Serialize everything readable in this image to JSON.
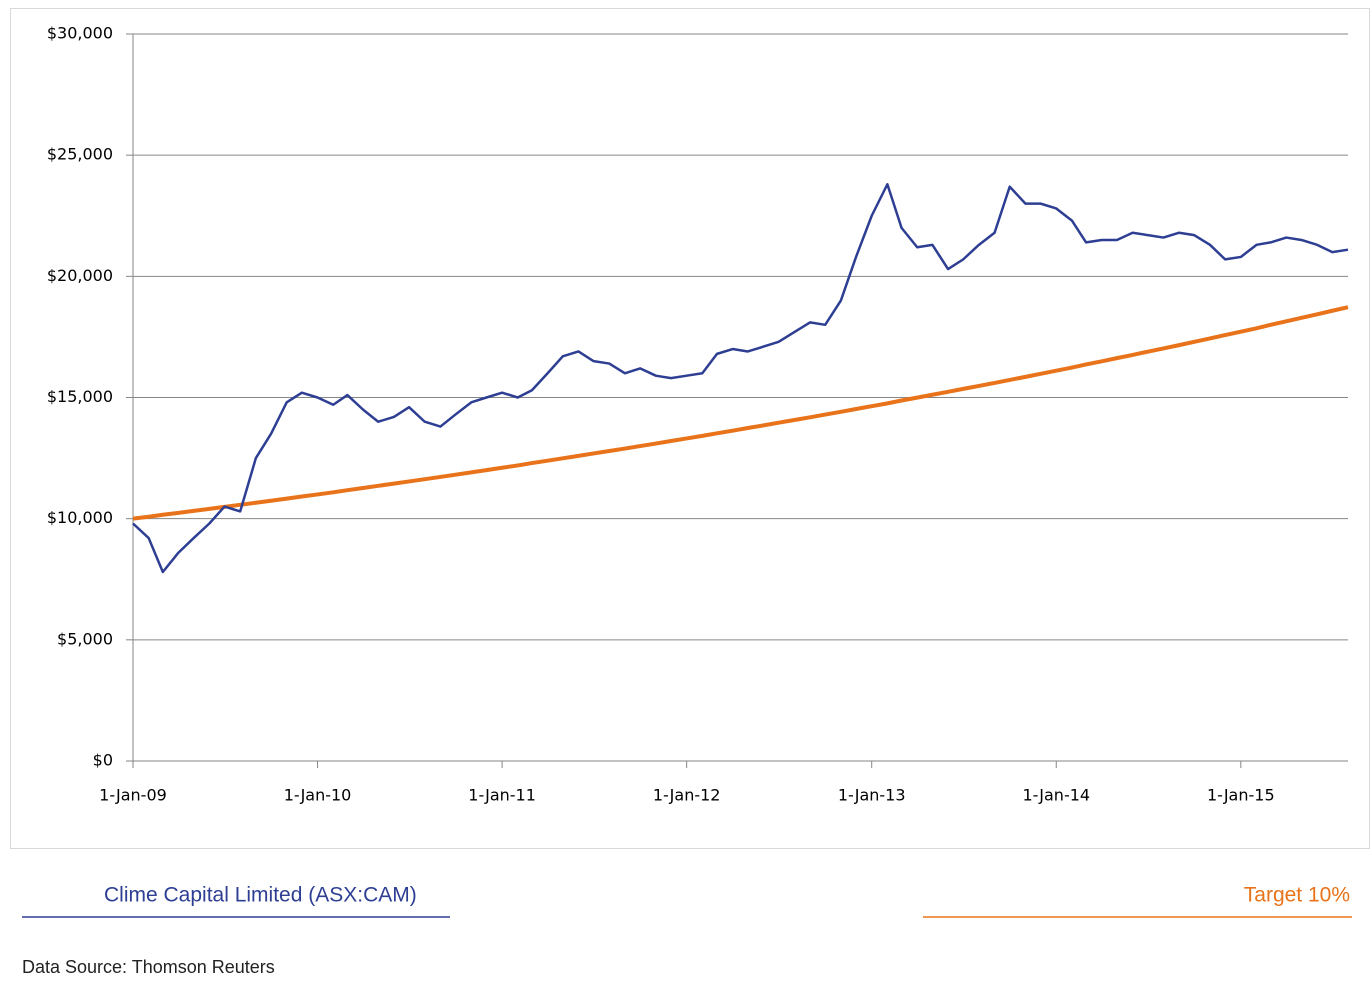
{
  "chart_data": {
    "type": "line",
    "x": [
      "2009-01-01",
      "2009-02-01",
      "2009-03-01",
      "2009-04-01",
      "2009-05-01",
      "2009-06-01",
      "2009-07-01",
      "2009-08-01",
      "2009-09-01",
      "2009-10-01",
      "2009-11-01",
      "2009-12-01",
      "2010-01-01",
      "2010-02-01",
      "2010-03-01",
      "2010-04-01",
      "2010-05-01",
      "2010-06-01",
      "2010-07-01",
      "2010-08-01",
      "2010-09-01",
      "2010-10-01",
      "2010-11-01",
      "2010-12-01",
      "2011-01-01",
      "2011-02-01",
      "2011-03-01",
      "2011-04-01",
      "2011-05-01",
      "2011-06-01",
      "2011-07-01",
      "2011-08-01",
      "2011-09-01",
      "2011-10-01",
      "2011-11-01",
      "2011-12-01",
      "2012-01-01",
      "2012-02-01",
      "2012-03-01",
      "2012-04-01",
      "2012-05-01",
      "2012-06-01",
      "2012-07-01",
      "2012-08-01",
      "2012-09-01",
      "2012-10-01",
      "2012-11-01",
      "2012-12-01",
      "2013-01-01",
      "2013-02-01",
      "2013-03-01",
      "2013-04-01",
      "2013-05-01",
      "2013-06-01",
      "2013-07-01",
      "2013-08-01",
      "2013-09-01",
      "2013-10-01",
      "2013-11-01",
      "2013-12-01",
      "2014-01-01",
      "2014-02-01",
      "2014-03-01",
      "2014-04-01",
      "2014-05-01",
      "2014-06-01",
      "2014-07-01",
      "2014-08-01",
      "2014-09-01",
      "2014-10-01",
      "2014-11-01",
      "2014-12-01",
      "2015-01-01",
      "2015-02-01",
      "2015-03-01",
      "2015-04-01",
      "2015-05-01",
      "2015-06-01",
      "2015-07-01",
      "2015-08-01"
    ],
    "series": [
      {
        "name": "Clime Capital Limited (ASX:CAM)",
        "color": "#2e3f93",
        "values": [
          9800,
          9200,
          7800,
          8600,
          9200,
          9800,
          10500,
          10300,
          12500,
          13500,
          14800,
          15200,
          15000,
          14700,
          15100,
          14500,
          14000,
          14200,
          14600,
          14000,
          13800,
          14300,
          14800,
          15000,
          15200,
          15000,
          15300,
          16000,
          16700,
          16900,
          16500,
          16400,
          16000,
          16200,
          15900,
          15800,
          15900,
          16000,
          16800,
          17000,
          16900,
          17100,
          17300,
          17700,
          18100,
          18000,
          19000,
          20800,
          22500,
          23800,
          22000,
          21200,
          21300,
          20300,
          20700,
          21300,
          21800,
          23700,
          23000,
          23000,
          22800,
          22300,
          21400,
          21500,
          21500,
          21800,
          21700,
          21600,
          21800,
          21700,
          21300,
          20700,
          20800,
          21300,
          21400,
          21600,
          21500,
          21300,
          21000,
          21100
        ]
      },
      {
        "name": "Target 10%",
        "color": "#e8731a",
        "values": [
          10000,
          10080,
          10160,
          10241,
          10323,
          10406,
          10488,
          10572,
          10656,
          10741,
          10827,
          10913,
          11000,
          11088,
          11176,
          11265,
          11355,
          11446,
          11537,
          11629,
          11722,
          11815,
          11909,
          12004,
          12100,
          12197,
          12294,
          12392,
          12491,
          12590,
          12691,
          12792,
          12894,
          12997,
          13100,
          13205,
          13310,
          13416,
          13523,
          13631,
          13740,
          13849,
          13960,
          14071,
          14183,
          14296,
          14410,
          14525,
          14641,
          14758,
          14876,
          14994,
          15114,
          15234,
          15356,
          15478,
          15602,
          15726,
          15851,
          15978,
          16105,
          16234,
          16363,
          16494,
          16625,
          16758,
          16891,
          17026,
          17161,
          17298,
          17436,
          17575,
          17716,
          17857,
          18000,
          18143,
          18288,
          18434,
          18580,
          18728
        ]
      }
    ],
    "xlim": [
      "2009-01-01",
      "2015-08-01"
    ],
    "xticks": [
      {
        "value": "2009-01-01",
        "label": "1-Jan-09"
      },
      {
        "value": "2010-01-01",
        "label": "1-Jan-10"
      },
      {
        "value": "2011-01-01",
        "label": "1-Jan-11"
      },
      {
        "value": "2012-01-01",
        "label": "1-Jan-12"
      },
      {
        "value": "2013-01-01",
        "label": "1-Jan-13"
      },
      {
        "value": "2014-01-01",
        "label": "1-Jan-14"
      },
      {
        "value": "2015-01-01",
        "label": "1-Jan-15"
      }
    ],
    "ylim": [
      0,
      30000
    ],
    "yticks": [
      {
        "value": 0,
        "label": "$0"
      },
      {
        "value": 5000,
        "label": "$5,000"
      },
      {
        "value": 10000,
        "label": "$10,000"
      },
      {
        "value": 15000,
        "label": "$15,000"
      },
      {
        "value": 20000,
        "label": "$20,000"
      },
      {
        "value": 25000,
        "label": "$25,000"
      },
      {
        "value": 30000,
        "label": "$30,000"
      }
    ],
    "grid": true,
    "source": "Data Source: Thomson Reuters"
  }
}
